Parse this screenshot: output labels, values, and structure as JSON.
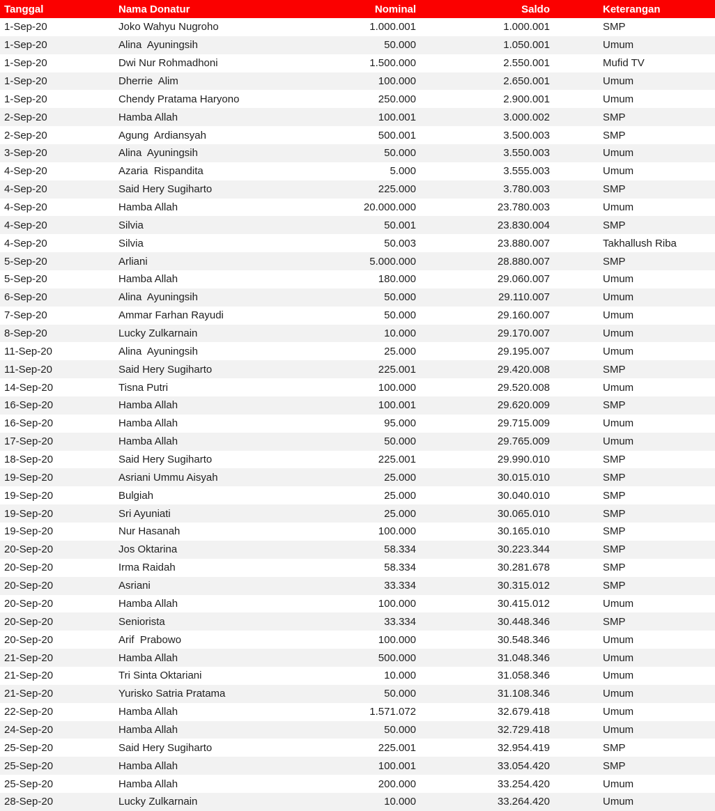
{
  "colors": {
    "header_bg": "#FB0000",
    "header_text": "#FFFFFF",
    "row_bg": "#FFFFFF",
    "row_alt_bg": "#F2F2F2",
    "text": "#1F1F1F"
  },
  "table": {
    "columns": [
      {
        "key": "tanggal",
        "label": "Tanggal",
        "align": "left"
      },
      {
        "key": "nama",
        "label": "Nama Donatur",
        "align": "left"
      },
      {
        "key": "nominal",
        "label": "Nominal",
        "align": "right"
      },
      {
        "key": "saldo",
        "label": "Saldo",
        "align": "right"
      },
      {
        "key": "keterangan",
        "label": "Keterangan",
        "align": "left"
      }
    ],
    "rows": [
      {
        "tanggal": "1-Sep-20",
        "nama": "Joko Wahyu Nugroho",
        "nominal": "1.000.001",
        "saldo": "1.000.001",
        "keterangan": "SMP"
      },
      {
        "tanggal": "1-Sep-20",
        "nama": "Alina  Ayuningsih",
        "nominal": "50.000",
        "saldo": "1.050.001",
        "keterangan": "Umum"
      },
      {
        "tanggal": "1-Sep-20",
        "nama": "Dwi Nur Rohmadhoni",
        "nominal": "1.500.000",
        "saldo": "2.550.001",
        "keterangan": "Mufid TV"
      },
      {
        "tanggal": "1-Sep-20",
        "nama": "Dherrie  Alim",
        "nominal": "100.000",
        "saldo": "2.650.001",
        "keterangan": "Umum"
      },
      {
        "tanggal": "1-Sep-20",
        "nama": "Chendy Pratama Haryono",
        "nominal": "250.000",
        "saldo": "2.900.001",
        "keterangan": "Umum"
      },
      {
        "tanggal": "2-Sep-20",
        "nama": "Hamba Allah",
        "nominal": "100.001",
        "saldo": "3.000.002",
        "keterangan": "SMP"
      },
      {
        "tanggal": "2-Sep-20",
        "nama": "Agung  Ardiansyah",
        "nominal": "500.001",
        "saldo": "3.500.003",
        "keterangan": "SMP"
      },
      {
        "tanggal": "3-Sep-20",
        "nama": "Alina  Ayuningsih",
        "nominal": "50.000",
        "saldo": "3.550.003",
        "keterangan": "Umum"
      },
      {
        "tanggal": "4-Sep-20",
        "nama": "Azaria  Rispandita",
        "nominal": "5.000",
        "saldo": "3.555.003",
        "keterangan": "Umum"
      },
      {
        "tanggal": "4-Sep-20",
        "nama": "Said Hery Sugiharto",
        "nominal": "225.000",
        "saldo": "3.780.003",
        "keterangan": "SMP"
      },
      {
        "tanggal": "4-Sep-20",
        "nama": "Hamba Allah",
        "nominal": "20.000.000",
        "saldo": "23.780.003",
        "keterangan": "Umum"
      },
      {
        "tanggal": "4-Sep-20",
        "nama": "Silvia",
        "nominal": "50.001",
        "saldo": "23.830.004",
        "keterangan": "SMP"
      },
      {
        "tanggal": "4-Sep-20",
        "nama": "Silvia",
        "nominal": "50.003",
        "saldo": "23.880.007",
        "keterangan": "Takhallush Riba"
      },
      {
        "tanggal": "5-Sep-20",
        "nama": "Arliani",
        "nominal": "5.000.000",
        "saldo": "28.880.007",
        "keterangan": "SMP"
      },
      {
        "tanggal": "5-Sep-20",
        "nama": "Hamba Allah",
        "nominal": "180.000",
        "saldo": "29.060.007",
        "keterangan": "Umum"
      },
      {
        "tanggal": "6-Sep-20",
        "nama": "Alina  Ayuningsih",
        "nominal": "50.000",
        "saldo": "29.110.007",
        "keterangan": "Umum"
      },
      {
        "tanggal": "7-Sep-20",
        "nama": "Ammar Farhan Rayudi",
        "nominal": "50.000",
        "saldo": "29.160.007",
        "keterangan": "Umum"
      },
      {
        "tanggal": "8-Sep-20",
        "nama": "Lucky Zulkarnain",
        "nominal": "10.000",
        "saldo": "29.170.007",
        "keterangan": "Umum"
      },
      {
        "tanggal": "11-Sep-20",
        "nama": "Alina  Ayuningsih",
        "nominal": "25.000",
        "saldo": "29.195.007",
        "keterangan": "Umum"
      },
      {
        "tanggal": "11-Sep-20",
        "nama": "Said Hery Sugiharto",
        "nominal": "225.001",
        "saldo": "29.420.008",
        "keterangan": "SMP"
      },
      {
        "tanggal": "14-Sep-20",
        "nama": "Tisna Putri",
        "nominal": "100.000",
        "saldo": "29.520.008",
        "keterangan": "Umum"
      },
      {
        "tanggal": "16-Sep-20",
        "nama": "Hamba Allah",
        "nominal": "100.001",
        "saldo": "29.620.009",
        "keterangan": "SMP"
      },
      {
        "tanggal": "16-Sep-20",
        "nama": "Hamba Allah",
        "nominal": "95.000",
        "saldo": "29.715.009",
        "keterangan": "Umum"
      },
      {
        "tanggal": "17-Sep-20",
        "nama": "Hamba Allah",
        "nominal": "50.000",
        "saldo": "29.765.009",
        "keterangan": "Umum"
      },
      {
        "tanggal": "18-Sep-20",
        "nama": "Said Hery Sugiharto",
        "nominal": "225.001",
        "saldo": "29.990.010",
        "keterangan": "SMP"
      },
      {
        "tanggal": "19-Sep-20",
        "nama": "Asriani Ummu Aisyah",
        "nominal": "25.000",
        "saldo": "30.015.010",
        "keterangan": "SMP"
      },
      {
        "tanggal": "19-Sep-20",
        "nama": "Bulgiah",
        "nominal": "25.000",
        "saldo": "30.040.010",
        "keterangan": "SMP"
      },
      {
        "tanggal": "19-Sep-20",
        "nama": "Sri Ayuniati",
        "nominal": "25.000",
        "saldo": "30.065.010",
        "keterangan": "SMP"
      },
      {
        "tanggal": "19-Sep-20",
        "nama": "Nur Hasanah",
        "nominal": "100.000",
        "saldo": "30.165.010",
        "keterangan": "SMP"
      },
      {
        "tanggal": "20-Sep-20",
        "nama": "Jos Oktarina",
        "nominal": "58.334",
        "saldo": "30.223.344",
        "keterangan": "SMP"
      },
      {
        "tanggal": "20-Sep-20",
        "nama": "Irma Raidah",
        "nominal": "58.334",
        "saldo": "30.281.678",
        "keterangan": "SMP"
      },
      {
        "tanggal": "20-Sep-20",
        "nama": "Asriani",
        "nominal": "33.334",
        "saldo": "30.315.012",
        "keterangan": "SMP"
      },
      {
        "tanggal": "20-Sep-20",
        "nama": "Hamba Allah",
        "nominal": "100.000",
        "saldo": "30.415.012",
        "keterangan": "Umum"
      },
      {
        "tanggal": "20-Sep-20",
        "nama": "Seniorista",
        "nominal": "33.334",
        "saldo": "30.448.346",
        "keterangan": "SMP"
      },
      {
        "tanggal": "20-Sep-20",
        "nama": "Arif  Prabowo",
        "nominal": "100.000",
        "saldo": "30.548.346",
        "keterangan": "Umum"
      },
      {
        "tanggal": "21-Sep-20",
        "nama": "Hamba Allah",
        "nominal": "500.000",
        "saldo": "31.048.346",
        "keterangan": "Umum"
      },
      {
        "tanggal": "21-Sep-20",
        "nama": "Tri Sinta Oktariani",
        "nominal": "10.000",
        "saldo": "31.058.346",
        "keterangan": "Umum"
      },
      {
        "tanggal": "21-Sep-20",
        "nama": "Yurisko Satria Pratama",
        "nominal": "50.000",
        "saldo": "31.108.346",
        "keterangan": "Umum"
      },
      {
        "tanggal": "22-Sep-20",
        "nama": "Hamba Allah",
        "nominal": "1.571.072",
        "saldo": "32.679.418",
        "keterangan": "Umum"
      },
      {
        "tanggal": "24-Sep-20",
        "nama": "Hamba Allah",
        "nominal": "50.000",
        "saldo": "32.729.418",
        "keterangan": "Umum"
      },
      {
        "tanggal": "25-Sep-20",
        "nama": "Said Hery Sugiharto",
        "nominal": "225.001",
        "saldo": "32.954.419",
        "keterangan": "SMP"
      },
      {
        "tanggal": "25-Sep-20",
        "nama": "Hamba Allah",
        "nominal": "100.001",
        "saldo": "33.054.420",
        "keterangan": "SMP"
      },
      {
        "tanggal": "25-Sep-20",
        "nama": "Hamba Allah",
        "nominal": "200.000",
        "saldo": "33.254.420",
        "keterangan": "Umum"
      },
      {
        "tanggal": "28-Sep-20",
        "nama": "Lucky Zulkarnain",
        "nominal": "10.000",
        "saldo": "33.264.420",
        "keterangan": "Umum"
      }
    ]
  }
}
